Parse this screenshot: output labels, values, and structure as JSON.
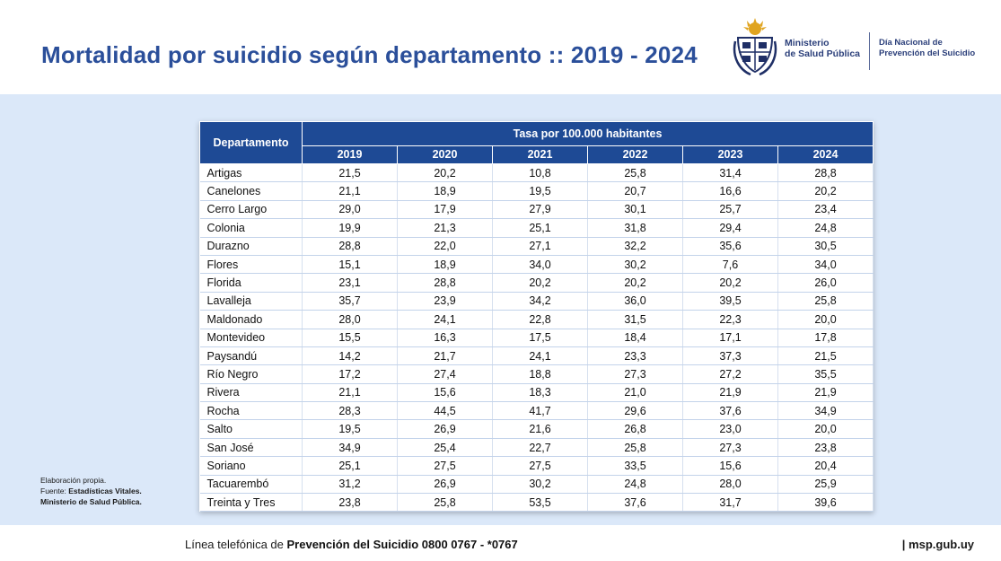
{
  "page": {
    "title": "Mortalidad por suicidio según departamento :: 2019 - 2024"
  },
  "logo": {
    "ministry_line1": "Ministerio",
    "ministry_line2": "de Salud Pública",
    "campaign_line1": "Día Nacional de",
    "campaign_line2": "Prevención del Suicidio"
  },
  "table": {
    "department_header": "Departamento",
    "group_header": "Tasa por 100.000 habitantes",
    "years": [
      "2019",
      "2020",
      "2021",
      "2022",
      "2023",
      "2024"
    ],
    "rows": [
      {
        "dep": "Artigas",
        "v": [
          "21,5",
          "20,2",
          "10,8",
          "25,8",
          "31,4",
          "28,8"
        ]
      },
      {
        "dep": "Canelones",
        "v": [
          "21,1",
          "18,9",
          "19,5",
          "20,7",
          "16,6",
          "20,2"
        ]
      },
      {
        "dep": "Cerro Largo",
        "v": [
          "29,0",
          "17,9",
          "27,9",
          "30,1",
          "25,7",
          "23,4"
        ]
      },
      {
        "dep": "Colonia",
        "v": [
          "19,9",
          "21,3",
          "25,1",
          "31,8",
          "29,4",
          "24,8"
        ]
      },
      {
        "dep": "Durazno",
        "v": [
          "28,8",
          "22,0",
          "27,1",
          "32,2",
          "35,6",
          "30,5"
        ]
      },
      {
        "dep": "Flores",
        "v": [
          "15,1",
          "18,9",
          "34,0",
          "30,2",
          "7,6",
          "34,0"
        ]
      },
      {
        "dep": "Florida",
        "v": [
          "23,1",
          "28,8",
          "20,2",
          "20,2",
          "20,2",
          "26,0"
        ]
      },
      {
        "dep": "Lavalleja",
        "v": [
          "35,7",
          "23,9",
          "34,2",
          "36,0",
          "39,5",
          "25,8"
        ]
      },
      {
        "dep": "Maldonado",
        "v": [
          "28,0",
          "24,1",
          "22,8",
          "31,5",
          "22,3",
          "20,0"
        ]
      },
      {
        "dep": "Montevideo",
        "v": [
          "15,5",
          "16,3",
          "17,5",
          "18,4",
          "17,1",
          "17,8"
        ]
      },
      {
        "dep": "Paysandú",
        "v": [
          "14,2",
          "21,7",
          "24,1",
          "23,3",
          "37,3",
          "21,5"
        ]
      },
      {
        "dep": "Río Negro",
        "v": [
          "17,2",
          "27,4",
          "18,8",
          "27,3",
          "27,2",
          "35,5"
        ]
      },
      {
        "dep": "Rivera",
        "v": [
          "21,1",
          "15,6",
          "18,3",
          "21,0",
          "21,9",
          "21,9"
        ]
      },
      {
        "dep": "Rocha",
        "v": [
          "28,3",
          "44,5",
          "41,7",
          "29,6",
          "37,6",
          "34,9"
        ]
      },
      {
        "dep": "Salto",
        "v": [
          "19,5",
          "26,9",
          "21,6",
          "26,8",
          "23,0",
          "20,0"
        ]
      },
      {
        "dep": "San José",
        "v": [
          "34,9",
          "25,4",
          "22,7",
          "25,8",
          "27,3",
          "23,8"
        ]
      },
      {
        "dep": "Soriano",
        "v": [
          "25,1",
          "27,5",
          "27,5",
          "33,5",
          "15,6",
          "20,4"
        ]
      },
      {
        "dep": "Tacuarembó",
        "v": [
          "31,2",
          "26,9",
          "30,2",
          "24,8",
          "28,0",
          "25,9"
        ]
      },
      {
        "dep": "Treinta y Tres",
        "v": [
          "23,8",
          "25,8",
          "53,5",
          "37,6",
          "31,7",
          "39,6"
        ]
      }
    ]
  },
  "note": {
    "line1": "Elaboración propia.",
    "source_label": "Fuente:",
    "source_value": "Estadísticas Vitales.",
    "line3": "Ministerio de Salud Pública."
  },
  "footer": {
    "hotline_prefix": "Línea telefónica de",
    "hotline_bold": "Prevención del Suicidio 0800 0767 - *0767",
    "website": "| msp.gub.uy"
  },
  "colors": {
    "title": "#2b4f9a",
    "table_header": "#1e4a95",
    "panel_bg": "#dbe8f9"
  }
}
